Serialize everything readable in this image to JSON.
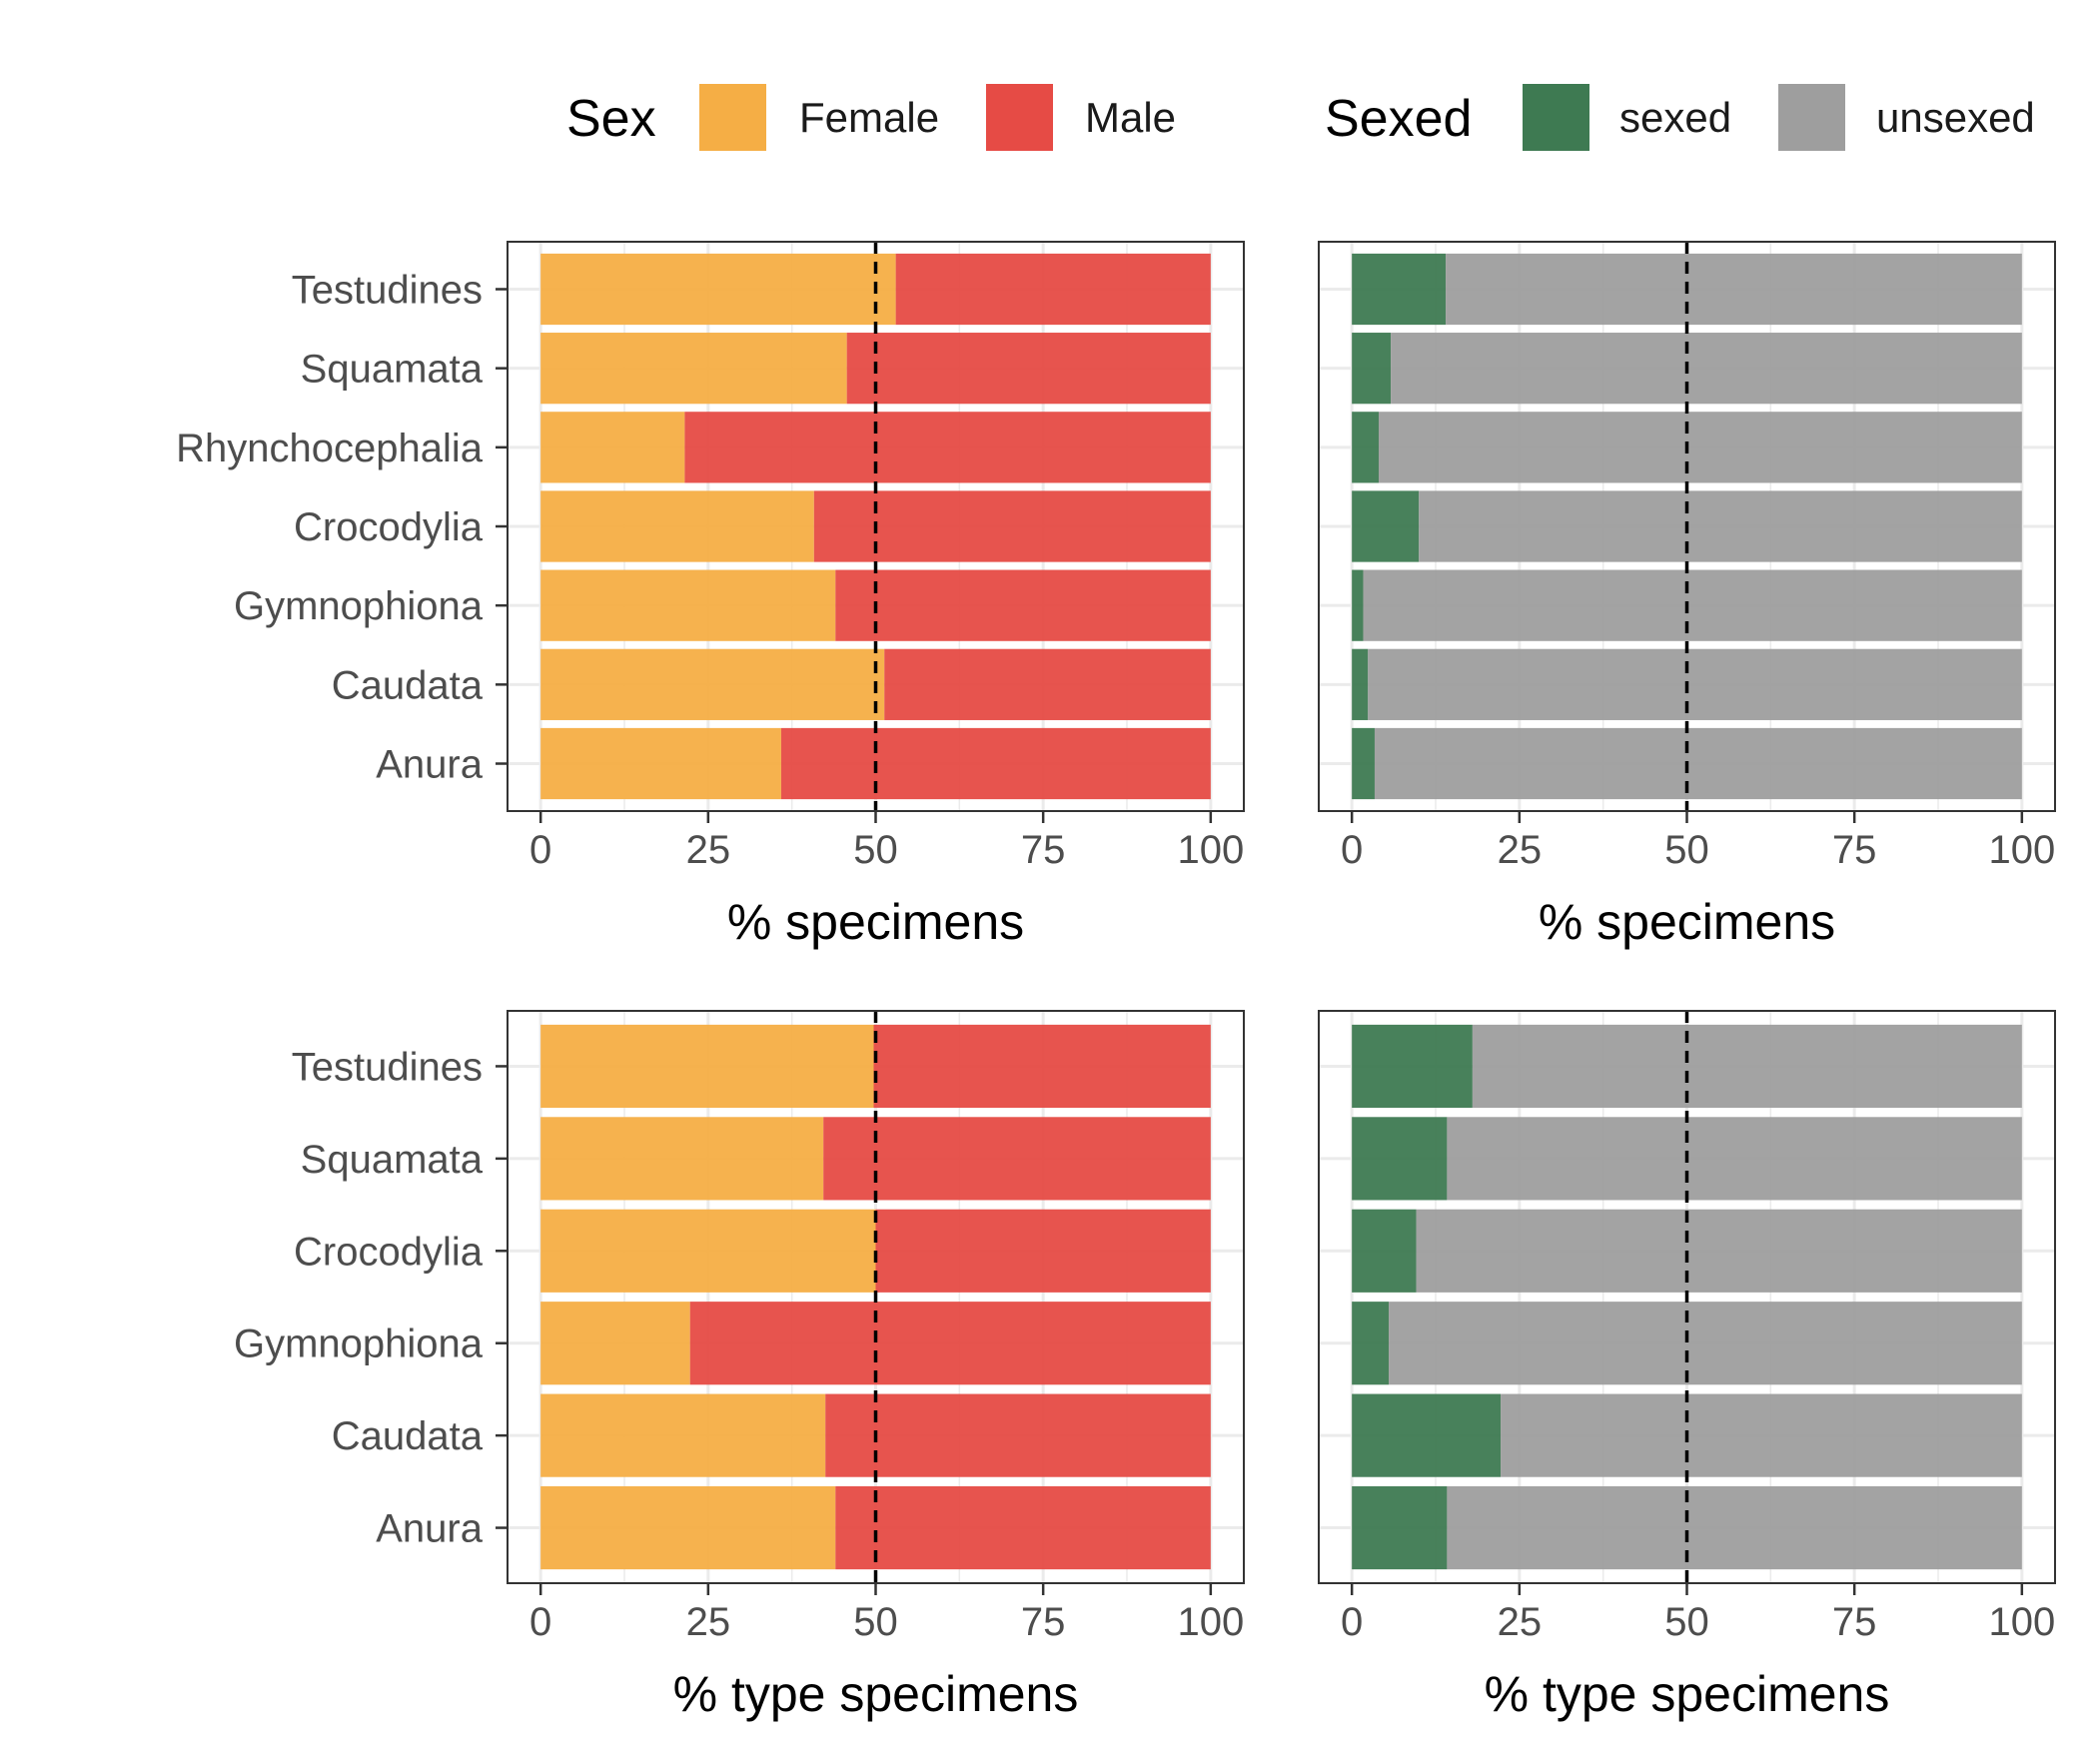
{
  "legend": {
    "sex": {
      "title": "Sex",
      "items": [
        {
          "label": "Female",
          "color": "#f5ae45"
        },
        {
          "label": "Male",
          "color": "#e64b45"
        }
      ]
    },
    "sexed": {
      "title": "Sexed",
      "items": [
        {
          "label": "sexed",
          "color": "#3e7a52"
        },
        {
          "label": "unsexed",
          "color": "#9e9e9e"
        }
      ]
    }
  },
  "chart_data": [
    {
      "type": "bar",
      "stacked": true,
      "orientation": "horizontal",
      "legend_group": "sex",
      "categories": [
        "Testudines",
        "Squamata",
        "Rhynchocephalia",
        "Crocodylia",
        "Gymnophiona",
        "Caudata",
        "Anura"
      ],
      "series": [
        {
          "name": "Female",
          "values": [
            53,
            45.7,
            21.5,
            40.8,
            44,
            51.3,
            35.9
          ]
        },
        {
          "name": "Male",
          "values": [
            47,
            54.3,
            78.5,
            59.2,
            56,
            48.7,
            64.1
          ]
        }
      ],
      "xlabel": "% specimens",
      "xlim": [
        0,
        100
      ],
      "xticks": [
        "0",
        "25",
        "50",
        "75",
        "100"
      ],
      "reference_line": 50
    },
    {
      "type": "bar",
      "stacked": true,
      "orientation": "horizontal",
      "legend_group": "sexed",
      "categories": [
        "Testudines",
        "Squamata",
        "Rhynchocephalia",
        "Crocodylia",
        "Gymnophiona",
        "Caudata",
        "Anura"
      ],
      "series": [
        {
          "name": "sexed",
          "values": [
            14,
            5.8,
            4,
            10,
            1.7,
            2.4,
            3.4
          ]
        },
        {
          "name": "unsexed",
          "values": [
            86,
            94.2,
            96,
            90,
            98.3,
            97.6,
            96.6
          ]
        }
      ],
      "xlabel": "% specimens",
      "xlim": [
        0,
        100
      ],
      "xticks": [
        "0",
        "25",
        "50",
        "75",
        "100"
      ],
      "reference_line": 50
    },
    {
      "type": "bar",
      "stacked": true,
      "orientation": "horizontal",
      "legend_group": "sex",
      "categories": [
        "Testudines",
        "Squamata",
        "Crocodylia",
        "Gymnophiona",
        "Caudata",
        "Anura"
      ],
      "series": [
        {
          "name": "Female",
          "values": [
            49.7,
            42.2,
            50,
            22.3,
            42.5,
            44
          ]
        },
        {
          "name": "Male",
          "values": [
            50.3,
            57.8,
            50,
            77.7,
            57.5,
            56
          ]
        }
      ],
      "xlabel": "% type specimens",
      "xlim": [
        0,
        100
      ],
      "xticks": [
        "0",
        "25",
        "50",
        "75",
        "100"
      ],
      "reference_line": 50
    },
    {
      "type": "bar",
      "stacked": true,
      "orientation": "horizontal",
      "legend_group": "sexed",
      "categories": [
        "Testudines",
        "Squamata",
        "Crocodylia",
        "Gymnophiona",
        "Caudata",
        "Anura"
      ],
      "series": [
        {
          "name": "sexed",
          "values": [
            18,
            14.2,
            9.6,
            5.5,
            22.2,
            14.2
          ]
        },
        {
          "name": "unsexed",
          "values": [
            82,
            85.8,
            90.4,
            94.5,
            77.8,
            85.8
          ]
        }
      ],
      "xlabel": "% type specimens",
      "xlim": [
        0,
        100
      ],
      "xticks": [
        "0",
        "25",
        "50",
        "75",
        "100"
      ],
      "reference_line": 50
    }
  ]
}
